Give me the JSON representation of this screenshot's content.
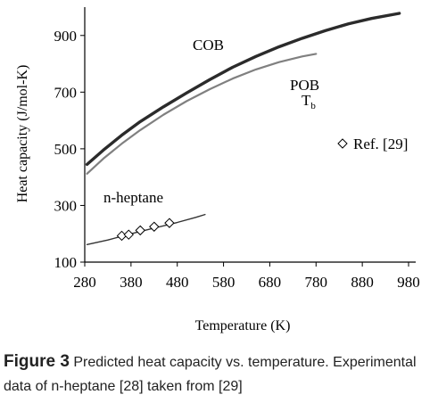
{
  "caption": {
    "label": "Figure 3",
    "text": "Predicted heat capacity vs. temperature. Experimental data of n-heptane [28] taken from [29]"
  },
  "chart_data": {
    "type": "line",
    "title": "",
    "xlabel": "Temperature (K)",
    "ylabel": "Heat capacity (J/mol-K)",
    "xlim": [
      280,
      980
    ],
    "ylim": [
      100,
      1000
    ],
    "xticks": [
      280,
      380,
      480,
      580,
      680,
      780,
      880,
      980
    ],
    "yticks": [
      100,
      300,
      500,
      700,
      900
    ],
    "grid": false,
    "series": [
      {
        "name": "COB",
        "color": "#2b2b2b",
        "x": [
          285,
          320,
          360,
          400,
          450,
          500,
          550,
          600,
          650,
          700,
          750,
          800,
          850,
          900,
          960
        ],
        "y": [
          445,
          495,
          548,
          596,
          648,
          697,
          744,
          788,
          826,
          860,
          890,
          917,
          941,
          960,
          978
        ]
      },
      {
        "name": "POB",
        "color": "#808080",
        "x": [
          285,
          320,
          360,
          400,
          450,
          500,
          550,
          600,
          650,
          700,
          750,
          780
        ],
        "y": [
          412,
          465,
          518,
          566,
          620,
          668,
          710,
          748,
          780,
          806,
          826,
          835
        ]
      },
      {
        "name": "n-heptane",
        "color": "#333333",
        "x": [
          285,
          330,
          380,
          430,
          480,
          520,
          540
        ],
        "y": [
          162,
          178,
          200,
          220,
          240,
          258,
          268
        ]
      }
    ],
    "markers": {
      "name": "Ref. [29]",
      "x": [
        360,
        375,
        400,
        430,
        463
      ],
      "y": [
        193,
        197,
        212,
        225,
        238
      ]
    },
    "annotations": {
      "cob": "COB",
      "pob": "POB",
      "tb": "T",
      "tb_sub": "b",
      "heptane": "n-heptane",
      "legend": "Ref. [29]"
    }
  }
}
